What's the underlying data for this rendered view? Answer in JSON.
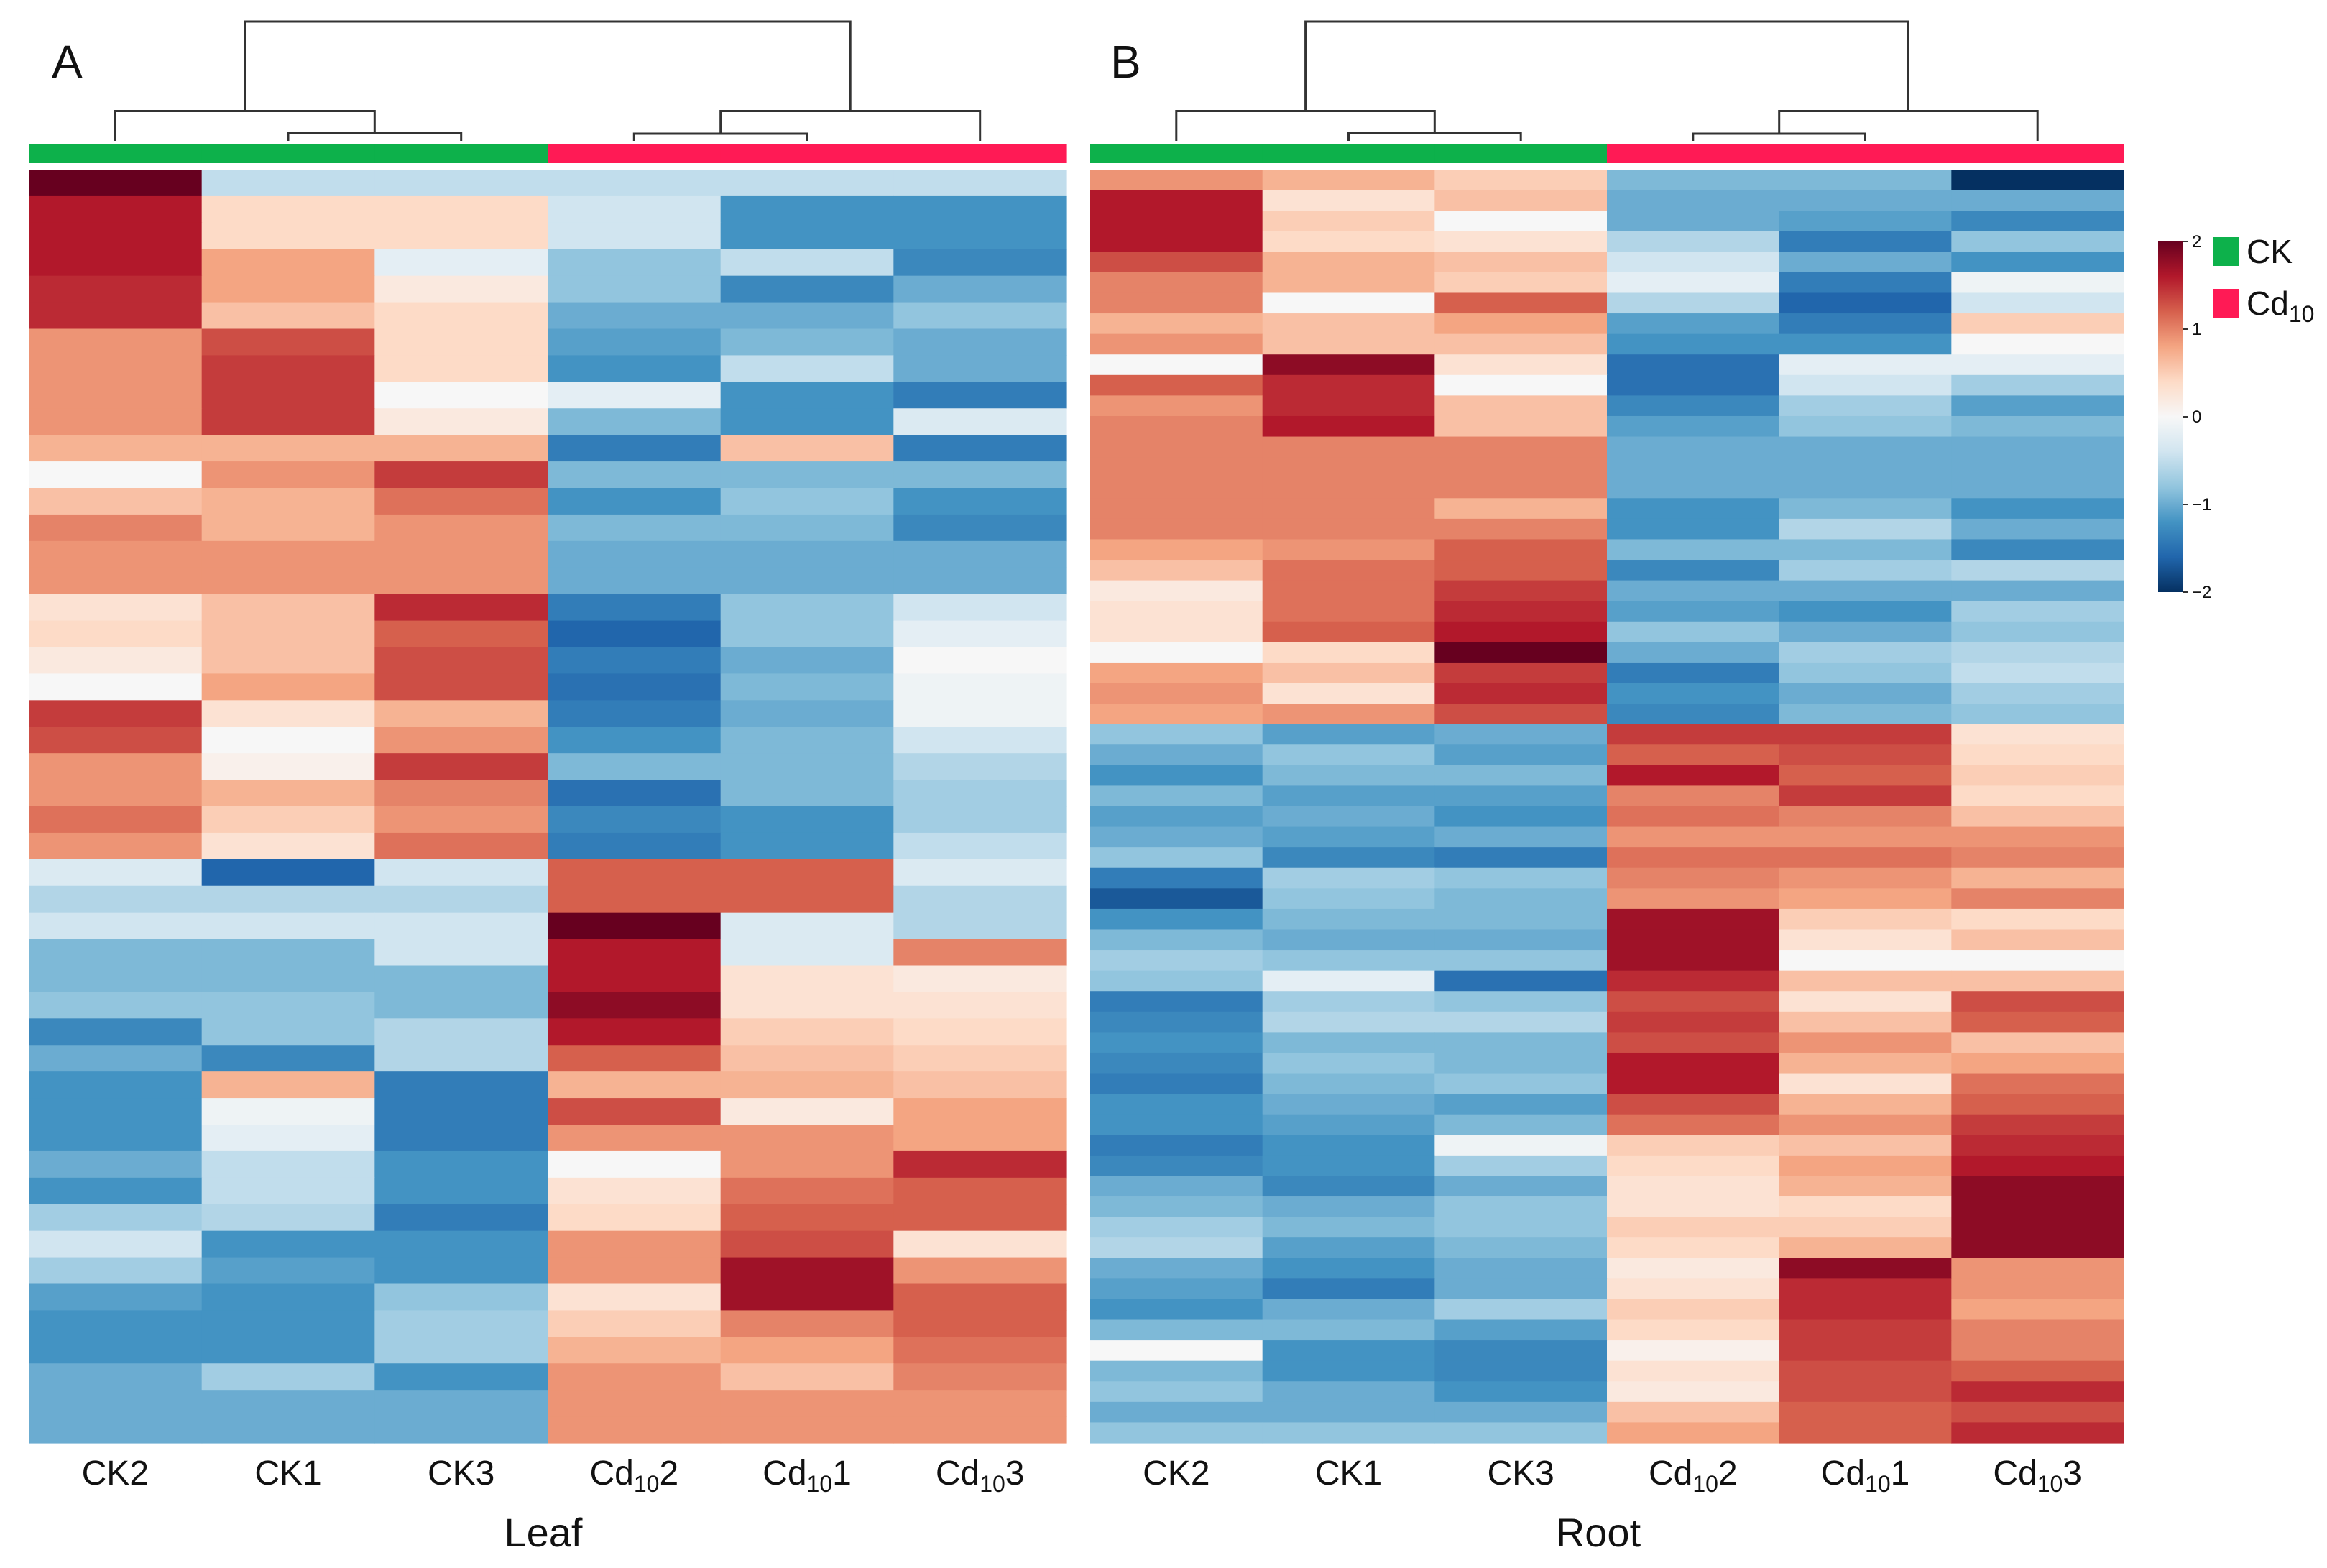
{
  "colorbar": {
    "ticks": [
      2,
      1,
      0,
      -1,
      -2
    ],
    "tick_labels": [
      "2",
      "1",
      "0",
      "−1",
      "−2"
    ],
    "colors": [
      "#053061",
      "#2166ac",
      "#4393c3",
      "#92c5de",
      "#d1e5f0",
      "#f7f7f7",
      "#fddbc7",
      "#f4a582",
      "#d6604d",
      "#b2182b",
      "#67001f"
    ]
  },
  "legend": [
    {
      "label": "CK",
      "sub": "",
      "color": "#0db14b"
    },
    {
      "label": "Cd",
      "sub": "10",
      "color": "#ff1a55"
    }
  ],
  "chart_data": [
    {
      "type": "heatmap",
      "panel_label": "A",
      "xlabel": "Leaf",
      "columns": [
        {
          "base": "CK2",
          "sub": "",
          "suffix": "",
          "group": "CK"
        },
        {
          "base": "CK1",
          "sub": "",
          "suffix": "",
          "group": "CK"
        },
        {
          "base": "CK3",
          "sub": "",
          "suffix": "",
          "group": "CK"
        },
        {
          "base": "Cd",
          "sub": "10",
          "suffix": "2",
          "group": "Cd10"
        },
        {
          "base": "Cd",
          "sub": "10",
          "suffix": "1",
          "group": "Cd10"
        },
        {
          "base": "Cd",
          "sub": "10",
          "suffix": "3",
          "group": "Cd10"
        }
      ],
      "values": [
        [
          2.0,
          -0.5,
          -0.5,
          -0.5,
          -0.5,
          -0.5
        ],
        [
          1.6,
          0.4,
          0.4,
          -0.4,
          -1.2,
          -1.2
        ],
        [
          1.6,
          0.4,
          0.4,
          -0.4,
          -1.2,
          -1.2
        ],
        [
          1.6,
          0.8,
          -0.2,
          -0.8,
          -0.5,
          -1.3
        ],
        [
          1.5,
          0.8,
          0.2,
          -0.8,
          -1.3,
          -1.0
        ],
        [
          1.5,
          0.6,
          0.4,
          -1.0,
          -1.0,
          -0.8
        ],
        [
          0.9,
          1.3,
          0.4,
          -1.1,
          -0.9,
          -1.0
        ],
        [
          0.9,
          1.4,
          0.4,
          -1.2,
          -0.5,
          -1.0
        ],
        [
          0.9,
          1.4,
          0.0,
          -0.2,
          -1.2,
          -1.4
        ],
        [
          0.9,
          1.4,
          0.2,
          -0.9,
          -1.2,
          -0.3
        ],
        [
          0.7,
          0.7,
          0.7,
          -1.4,
          0.6,
          -1.4
        ],
        [
          0.0,
          0.9,
          1.4,
          -0.9,
          -0.9,
          -0.9
        ],
        [
          0.6,
          0.7,
          1.1,
          -1.2,
          -0.8,
          -1.2
        ],
        [
          1.0,
          0.7,
          0.9,
          -0.9,
          -0.9,
          -1.3
        ],
        [
          0.9,
          0.9,
          0.9,
          -1.0,
          -1.0,
          -1.0
        ],
        [
          0.9,
          0.9,
          0.9,
          -1.0,
          -1.0,
          -1.0
        ],
        [
          0.3,
          0.6,
          1.5,
          -1.4,
          -0.8,
          -0.4
        ],
        [
          0.4,
          0.6,
          1.2,
          -1.6,
          -0.8,
          -0.2
        ],
        [
          0.2,
          0.6,
          1.3,
          -1.4,
          -1.0,
          0.0
        ],
        [
          0.0,
          0.8,
          1.3,
          -1.5,
          -0.9,
          -0.1
        ],
        [
          1.4,
          0.3,
          0.7,
          -1.4,
          -1.0,
          -0.1
        ],
        [
          1.3,
          0.0,
          0.9,
          -1.2,
          -0.9,
          -0.4
        ],
        [
          0.9,
          0.1,
          1.4,
          -0.9,
          -0.9,
          -0.6
        ],
        [
          0.9,
          0.7,
          1.0,
          -1.5,
          -0.9,
          -0.7
        ],
        [
          1.1,
          0.5,
          0.9,
          -1.3,
          -1.2,
          -0.7
        ],
        [
          0.9,
          0.3,
          1.1,
          -1.4,
          -1.2,
          -0.5
        ],
        [
          -0.3,
          -1.6,
          -0.4,
          1.2,
          1.2,
          -0.3
        ],
        [
          -0.6,
          -0.6,
          -0.6,
          1.2,
          1.2,
          -0.6
        ],
        [
          -0.4,
          -0.4,
          -0.4,
          2.0,
          -0.3,
          -0.6
        ],
        [
          -0.9,
          -0.9,
          -0.4,
          1.6,
          -0.3,
          1.0
        ],
        [
          -0.9,
          -0.9,
          -0.9,
          1.6,
          0.3,
          0.2
        ],
        [
          -0.8,
          -0.8,
          -0.9,
          1.8,
          0.3,
          0.3
        ],
        [
          -1.3,
          -0.8,
          -0.6,
          1.6,
          0.5,
          0.4
        ],
        [
          -1.0,
          -1.3,
          -0.6,
          1.2,
          0.6,
          0.5
        ],
        [
          -1.2,
          0.7,
          -1.4,
          0.7,
          0.7,
          0.6
        ],
        [
          -1.2,
          -0.1,
          -1.4,
          1.3,
          0.2,
          0.8
        ],
        [
          -1.2,
          -0.2,
          -1.4,
          0.9,
          0.9,
          0.8
        ],
        [
          -1.0,
          -0.5,
          -1.2,
          0.0,
          0.9,
          1.5
        ],
        [
          -1.2,
          -0.5,
          -1.2,
          0.3,
          1.1,
          1.2
        ],
        [
          -0.7,
          -0.6,
          -1.4,
          0.4,
          1.2,
          1.2
        ],
        [
          -0.4,
          -1.2,
          -1.2,
          0.9,
          1.3,
          0.3
        ],
        [
          -0.7,
          -1.1,
          -1.2,
          0.9,
          1.7,
          0.9
        ],
        [
          -1.1,
          -1.2,
          -0.8,
          0.3,
          1.7,
          1.2
        ],
        [
          -1.2,
          -1.2,
          -0.7,
          0.5,
          1.0,
          1.2
        ],
        [
          -1.2,
          -1.2,
          -0.7,
          0.7,
          0.8,
          1.1
        ],
        [
          -1.0,
          -0.7,
          -1.2,
          0.9,
          0.6,
          1.0
        ],
        [
          -1.0,
          -1.0,
          -1.0,
          0.9,
          0.9,
          0.9
        ],
        [
          -1.0,
          -1.0,
          -1.0,
          0.9,
          0.9,
          0.9
        ]
      ],
      "col_dendrogram": {
        "merges": [
          [
            3,
            4,
            0.12
          ],
          [
            1,
            2,
            0.13
          ],
          [
            0,
            1,
            0.5
          ],
          [
            3,
            5,
            0.5
          ],
          [
            0,
            3,
            2.0
          ]
        ]
      }
    },
    {
      "type": "heatmap",
      "panel_label": "B",
      "xlabel": "Root",
      "columns": [
        {
          "base": "CK2",
          "sub": "",
          "suffix": "",
          "group": "CK"
        },
        {
          "base": "CK1",
          "sub": "",
          "suffix": "",
          "group": "CK"
        },
        {
          "base": "CK3",
          "sub": "",
          "suffix": "",
          "group": "CK"
        },
        {
          "base": "Cd",
          "sub": "10",
          "suffix": "2",
          "group": "Cd10"
        },
        {
          "base": "Cd",
          "sub": "10",
          "suffix": "1",
          "group": "Cd10"
        },
        {
          "base": "Cd",
          "sub": "10",
          "suffix": "3",
          "group": "Cd10"
        }
      ],
      "values": [
        [
          0.9,
          0.7,
          0.5,
          -0.9,
          -0.9,
          -2.0
        ],
        [
          1.6,
          0.3,
          0.6,
          -1.0,
          -1.0,
          -1.0
        ],
        [
          1.6,
          0.5,
          0.0,
          -1.0,
          -1.1,
          -1.3
        ],
        [
          1.6,
          0.4,
          0.3,
          -0.6,
          -1.4,
          -0.8
        ],
        [
          1.3,
          0.7,
          0.6,
          -0.4,
          -1.0,
          -1.2
        ],
        [
          1.0,
          0.7,
          0.5,
          -0.2,
          -1.4,
          -0.1
        ],
        [
          1.0,
          0.0,
          1.2,
          -0.6,
          -1.6,
          -0.4
        ],
        [
          0.7,
          0.6,
          0.8,
          -1.1,
          -1.4,
          0.5
        ],
        [
          0.9,
          0.6,
          0.6,
          -1.2,
          -1.2,
          0.0
        ],
        [
          0.0,
          1.8,
          0.3,
          -1.5,
          -0.2,
          -0.2
        ],
        [
          1.2,
          1.5,
          0.0,
          -1.5,
          -0.4,
          -0.7
        ],
        [
          0.9,
          1.5,
          0.6,
          -1.3,
          -0.7,
          -1.1
        ],
        [
          1.0,
          1.6,
          0.6,
          -1.1,
          -0.8,
          -0.9
        ],
        [
          1.0,
          1.0,
          1.0,
          -1.0,
          -1.0,
          -1.0
        ],
        [
          1.0,
          1.0,
          1.0,
          -1.0,
          -1.0,
          -1.0
        ],
        [
          1.0,
          1.0,
          1.0,
          -1.0,
          -1.0,
          -1.0
        ],
        [
          1.0,
          1.0,
          0.7,
          -1.2,
          -0.9,
          -1.2
        ],
        [
          1.0,
          1.0,
          1.0,
          -1.2,
          -0.6,
          -1.0
        ],
        [
          0.8,
          0.9,
          1.2,
          -0.9,
          -0.9,
          -1.3
        ],
        [
          0.6,
          1.1,
          1.2,
          -1.3,
          -0.7,
          -0.6
        ],
        [
          0.2,
          1.1,
          1.4,
          -1.0,
          -1.0,
          -1.0
        ],
        [
          0.3,
          1.1,
          1.5,
          -1.1,
          -1.2,
          -0.7
        ],
        [
          0.3,
          1.2,
          1.6,
          -0.8,
          -1.0,
          -0.8
        ],
        [
          0.0,
          0.4,
          2.0,
          -1.0,
          -0.7,
          -0.6
        ],
        [
          0.8,
          0.6,
          1.4,
          -1.4,
          -0.8,
          -0.5
        ],
        [
          0.9,
          0.3,
          1.5,
          -1.2,
          -1.0,
          -0.7
        ],
        [
          0.8,
          0.9,
          1.3,
          -1.3,
          -0.9,
          -0.8
        ],
        [
          -0.8,
          -1.1,
          -1.0,
          1.4,
          1.4,
          0.3
        ],
        [
          -1.0,
          -0.8,
          -1.1,
          1.2,
          1.3,
          0.4
        ],
        [
          -1.2,
          -0.9,
          -0.9,
          1.6,
          1.2,
          0.5
        ],
        [
          -0.9,
          -1.1,
          -1.1,
          1.0,
          1.4,
          0.4
        ],
        [
          -1.1,
          -1.0,
          -1.2,
          1.1,
          1.0,
          0.6
        ],
        [
          -1.0,
          -1.1,
          -1.0,
          0.9,
          0.9,
          0.9
        ],
        [
          -0.8,
          -1.3,
          -1.4,
          1.1,
          1.1,
          1.0
        ],
        [
          -1.4,
          -0.7,
          -0.8,
          1.0,
          0.9,
          0.7
        ],
        [
          -1.7,
          -0.8,
          -0.9,
          0.9,
          0.8,
          1.0
        ],
        [
          -1.2,
          -0.9,
          -0.9,
          1.7,
          0.5,
          0.4
        ],
        [
          -0.9,
          -1.0,
          -1.0,
          1.7,
          0.3,
          0.6
        ],
        [
          -0.7,
          -0.8,
          -0.8,
          1.7,
          0.0,
          0.0
        ],
        [
          -0.8,
          -0.2,
          -1.5,
          1.5,
          0.6,
          0.6
        ],
        [
          -1.4,
          -0.7,
          -0.8,
          1.3,
          0.3,
          1.3
        ],
        [
          -1.3,
          -0.6,
          -0.6,
          1.4,
          0.6,
          1.2
        ],
        [
          -1.2,
          -0.9,
          -0.9,
          1.3,
          0.9,
          0.6
        ],
        [
          -1.3,
          -0.8,
          -0.9,
          1.6,
          0.7,
          0.8
        ],
        [
          -1.4,
          -0.9,
          -0.8,
          1.6,
          0.3,
          1.1
        ],
        [
          -1.2,
          -1.0,
          -1.1,
          1.3,
          0.7,
          1.2
        ],
        [
          -1.2,
          -1.1,
          -0.9,
          1.1,
          0.9,
          1.4
        ],
        [
          -1.4,
          -1.2,
          -0.1,
          0.5,
          0.6,
          1.5
        ],
        [
          -1.3,
          -1.2,
          -0.7,
          0.4,
          0.8,
          1.6
        ],
        [
          -1.0,
          -1.3,
          -1.0,
          0.3,
          0.7,
          1.8
        ],
        [
          -0.9,
          -1.0,
          -0.8,
          0.3,
          0.4,
          1.8
        ],
        [
          -0.7,
          -0.9,
          -0.8,
          0.5,
          0.5,
          1.8
        ],
        [
          -0.6,
          -1.1,
          -0.9,
          0.4,
          0.7,
          1.8
        ],
        [
          -1.0,
          -1.2,
          -1.0,
          0.2,
          1.8,
          0.9
        ],
        [
          -1.1,
          -1.4,
          -1.0,
          0.3,
          1.5,
          0.9
        ],
        [
          -1.2,
          -1.0,
          -0.7,
          0.5,
          1.5,
          0.8
        ],
        [
          -0.9,
          -0.9,
          -1.1,
          0.4,
          1.4,
          1.0
        ],
        [
          0.0,
          -1.2,
          -1.3,
          0.1,
          1.4,
          1.0
        ],
        [
          -0.9,
          -1.2,
          -1.3,
          0.3,
          1.3,
          1.2
        ],
        [
          -0.8,
          -1.0,
          -1.2,
          0.2,
          1.3,
          1.5
        ],
        [
          -1.0,
          -1.0,
          -1.0,
          0.6,
          1.2,
          1.3
        ],
        [
          -0.8,
          -0.8,
          -0.8,
          0.8,
          1.2,
          1.5
        ]
      ],
      "col_dendrogram": {
        "merges": [
          [
            3,
            4,
            0.12
          ],
          [
            1,
            2,
            0.13
          ],
          [
            0,
            1,
            0.5
          ],
          [
            3,
            5,
            0.5
          ],
          [
            0,
            3,
            2.0
          ]
        ]
      }
    }
  ]
}
